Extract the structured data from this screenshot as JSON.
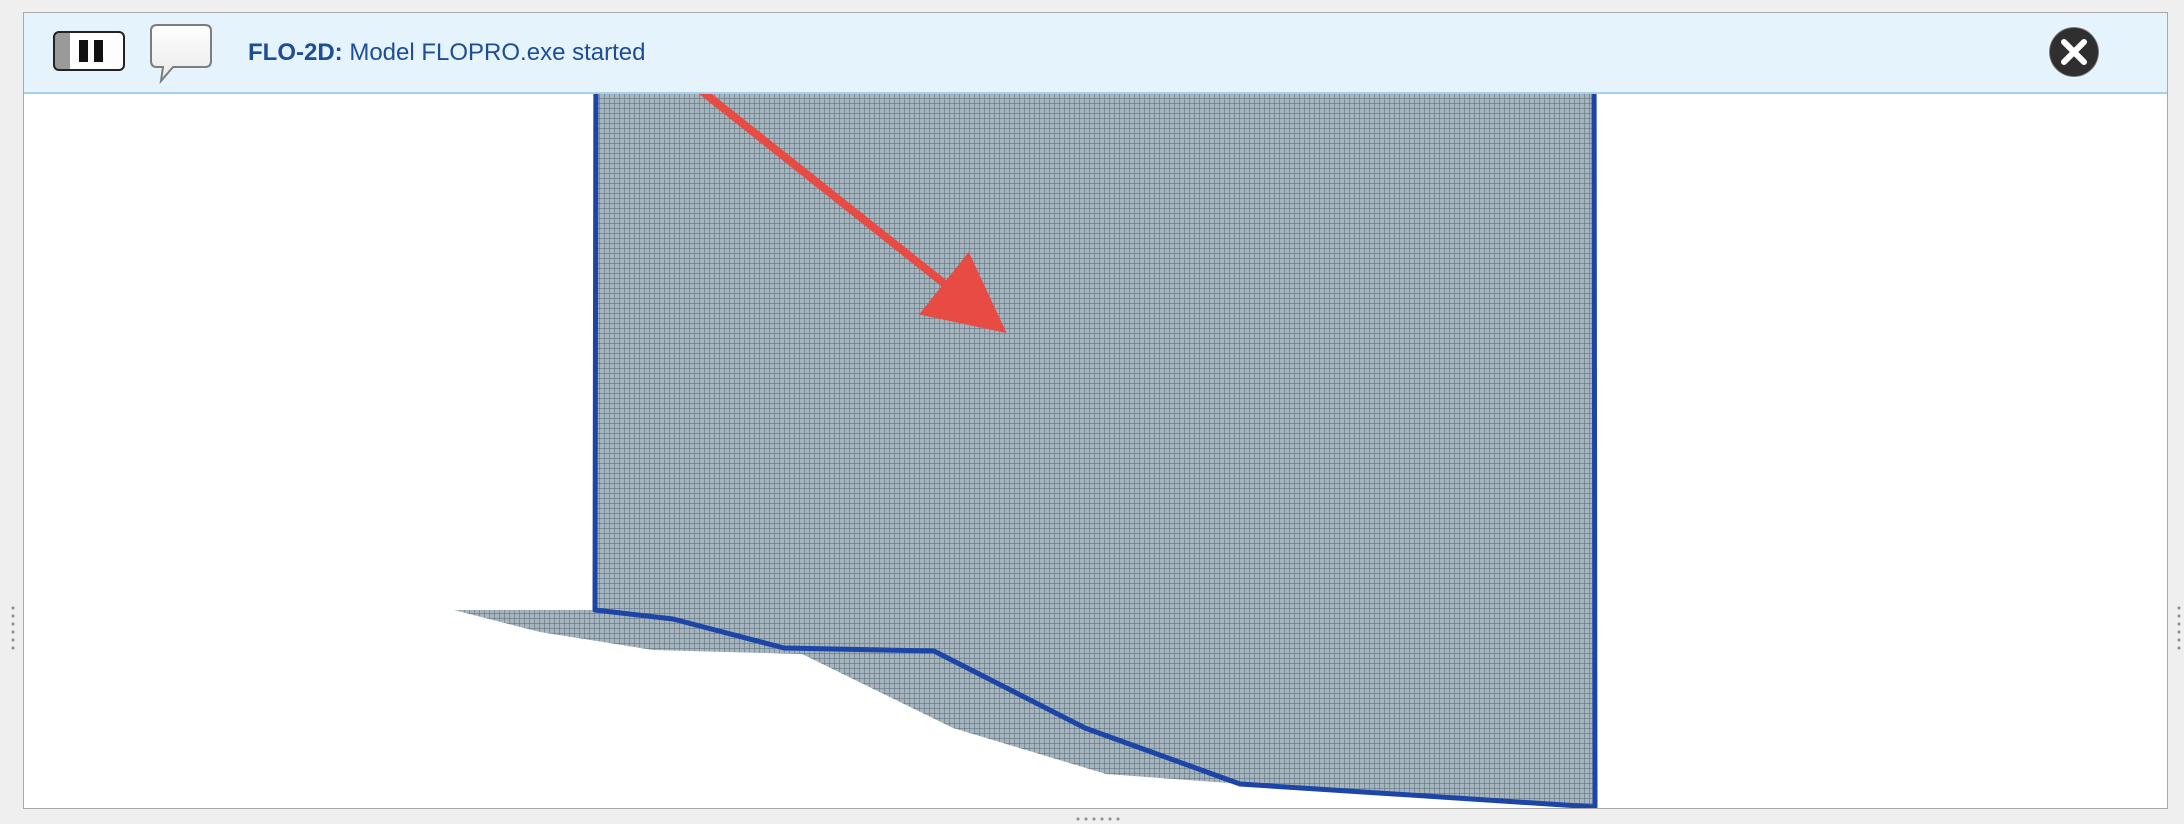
{
  "message_bar": {
    "title": "FLO-2D:",
    "message": "Model FLOPRO.exe started",
    "icons": {
      "pause": "pause-icon",
      "speech": "speech-bubble-icon",
      "close": "close-circle-icon"
    }
  },
  "map": {
    "layer": "grid-mesh-polygon",
    "colors": {
      "fill": "#8fa3ad",
      "grid_line": "#5e7482",
      "outline": "#1d45a8",
      "arrow": "#e84b43",
      "message_text": "#1e4d96",
      "message_bar_bg": "#e5f3fd"
    }
  }
}
